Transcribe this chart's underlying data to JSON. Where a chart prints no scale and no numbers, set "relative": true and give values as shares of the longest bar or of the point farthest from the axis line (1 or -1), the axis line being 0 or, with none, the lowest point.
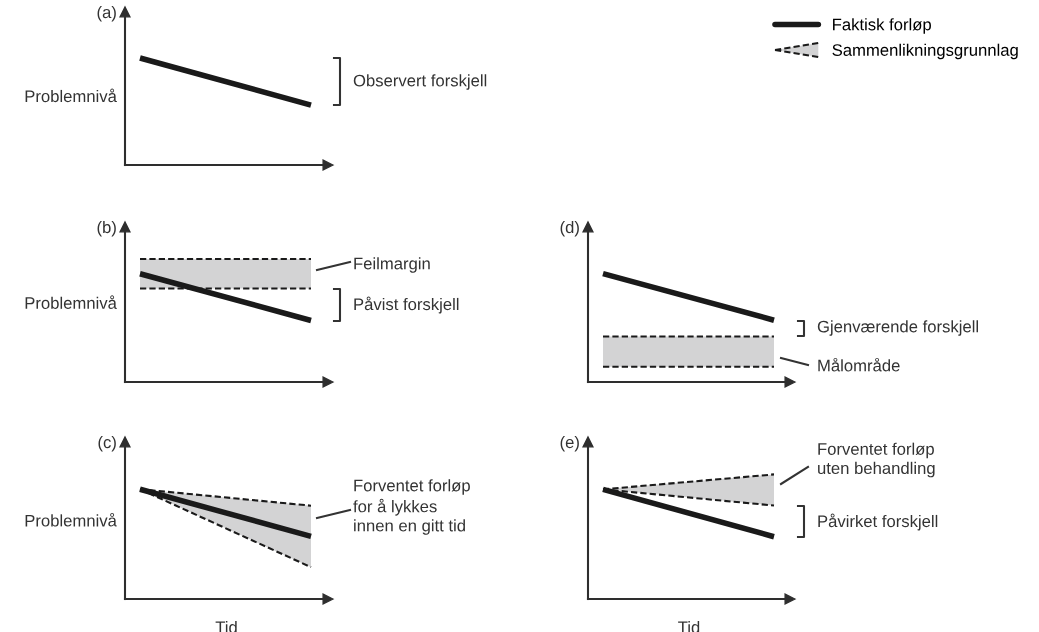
{
  "chart_data": [
    {
      "type": "line",
      "title": "(a)",
      "ylabel": "Problemnivå",
      "relative": true,
      "categories": [
        null,
        null
      ],
      "series": [
        {
          "color": "#1a1a1a",
          "values": [
            1,
            0.56
          ]
        }
      ],
      "annotations": [
        "Observert forskjell"
      ]
    },
    {
      "type": "line",
      "title": "(b)",
      "ylabel": "Problemnivå",
      "relative": true,
      "categories": [
        null,
        null
      ],
      "series": [
        {
          "color": "#1a1a1a",
          "line_style": "dashed",
          "values": [
            1,
            1
          ],
          "lower": [
            0.76,
            0.76
          ],
          "upper": [
            1,
            1
          ]
        },
        {
          "color": "#1a1a1a",
          "line_style": "dashed",
          "values": [
            0.76,
            0.76
          ]
        },
        {
          "color": "#1a1a1a",
          "values": [
            0.88,
            0.5
          ]
        }
      ],
      "annotations": [
        "Feilmargin",
        "Påvist forskjell"
      ]
    },
    {
      "type": "line",
      "title": "(c)",
      "ylabel": "Problemnivå",
      "xlabel": "Tid",
      "relative": true,
      "categories": [
        null,
        null
      ],
      "series": [
        {
          "color": "#1a1a1a",
          "line_style": "dashed",
          "values": [
            1,
            0.85
          ],
          "lower": [
            1,
            0.29
          ],
          "upper": [
            1,
            0.85
          ]
        },
        {
          "color": "#1a1a1a",
          "line_style": "dashed",
          "values": [
            1,
            0.29
          ]
        },
        {
          "color": "#1a1a1a",
          "values": [
            1,
            0.57
          ]
        }
      ],
      "annotations": [
        "Forventet forløp\nfor å lykkes\ninnen en gitt tid"
      ]
    },
    {
      "type": "line",
      "title": "(d)",
      "relative": true,
      "categories": [
        null,
        null
      ],
      "legend": "top right",
      "series": [
        {
          "name": "Sammenlikningsgrunnlag",
          "color": "#1a1a1a",
          "line_style": "dashed",
          "values": [
            0.42,
            0.42
          ],
          "lower": [
            0.14,
            0.14
          ],
          "upper": [
            0.42,
            0.42
          ]
        },
        {
          "color": "#1a1a1a",
          "line_style": "dashed",
          "values": [
            0.14,
            0.14
          ]
        },
        {
          "name": "Faktisk forløp",
          "color": "#1a1a1a",
          "values": [
            1,
            0.57
          ]
        }
      ],
      "annotations": [
        "Gjenværende forskjell",
        "Målområde"
      ]
    },
    {
      "type": "line",
      "title": "(e)",
      "xlabel": "Tid",
      "relative": true,
      "categories": [
        null,
        null
      ],
      "series": [
        {
          "color": "#1a1a1a",
          "line_style": "dashed",
          "values": [
            0.88,
            1
          ],
          "lower": [
            0.88,
            0.75
          ],
          "upper": [
            0.88,
            1
          ]
        },
        {
          "color": "#1a1a1a",
          "line_style": "dashed",
          "values": [
            0.88,
            0.75
          ]
        },
        {
          "color": "#1a1a1a",
          "values": [
            0.88,
            0.5
          ]
        }
      ],
      "annotations": [
        "Forventet forløp\nuten behandling",
        "Påvirket forskjell"
      ]
    }
  ]
}
